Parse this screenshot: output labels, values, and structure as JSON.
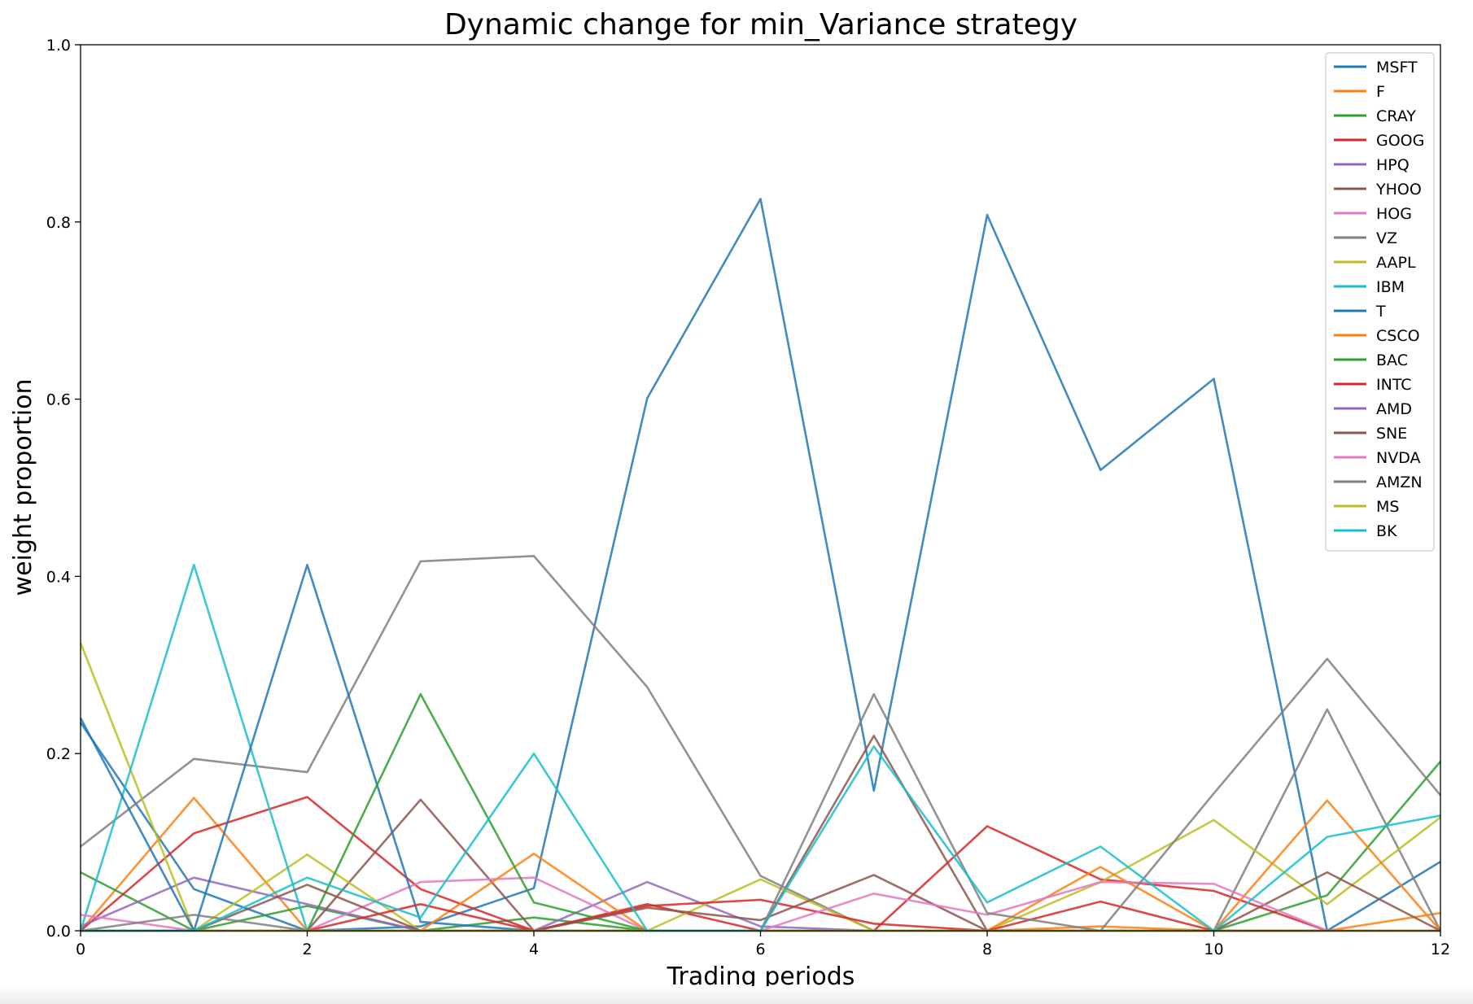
{
  "chart_data": {
    "type": "line",
    "title": "Dynamic change for min_Variance strategy",
    "xlabel": "Trading periods",
    "ylabel": "weight proportion",
    "xlim": [
      0,
      12
    ],
    "ylim": [
      0,
      1.0
    ],
    "xticks": [
      0,
      2,
      4,
      6,
      8,
      10,
      12
    ],
    "yticks": [
      "0.0",
      "0.2",
      "0.4",
      "0.6",
      "0.8",
      "1.0"
    ],
    "grid": false,
    "legend_position": "top-right",
    "x": [
      0,
      1,
      2,
      3,
      4,
      5,
      6,
      7,
      8,
      9,
      10,
      11,
      12
    ],
    "series": [
      {
        "name": "MSFT",
        "color": "#1f77b4",
        "values": [
          0.235,
          0.047,
          0.0,
          0.005,
          0.048,
          0.601,
          0.826,
          0.158,
          0.808,
          0.52,
          0.623,
          0.0,
          0.078
        ]
      },
      {
        "name": "F",
        "color": "#ff7f0e",
        "values": [
          0.0,
          0.15,
          0.0,
          0.0,
          0.0,
          0.0,
          0.0,
          0.0,
          0.0,
          0.005,
          0.0,
          0.0,
          0.02
        ]
      },
      {
        "name": "CRAY",
        "color": "#2ca02c",
        "values": [
          0.066,
          0.0,
          0.028,
          0.0,
          0.015,
          0.0,
          0.0,
          0.0,
          0.0,
          0.0,
          0.0,
          0.04,
          0.191
        ]
      },
      {
        "name": "GOOG",
        "color": "#d62728",
        "values": [
          0.0,
          0.11,
          0.151,
          0.047,
          0.0,
          0.03,
          0.0,
          0.0,
          0.118,
          0.058,
          0.045,
          0.0,
          0.0
        ]
      },
      {
        "name": "HPQ",
        "color": "#9467bd",
        "values": [
          0.005,
          0.06,
          0.03,
          0.0,
          0.0,
          0.055,
          0.005,
          0.0,
          0.0,
          0.0,
          0.0,
          0.0,
          0.0
        ]
      },
      {
        "name": "YHOO",
        "color": "#8c564b",
        "values": [
          0.0,
          0.0,
          0.0,
          0.148,
          0.0,
          0.0,
          0.0,
          0.22,
          0.0,
          0.0,
          0.0,
          0.0,
          0.0
        ]
      },
      {
        "name": "HOG",
        "color": "#e377c2",
        "values": [
          0.0,
          0.0,
          0.0,
          0.055,
          0.06,
          0.0,
          0.0,
          0.0,
          0.0,
          0.0,
          0.0,
          0.0,
          0.0
        ]
      },
      {
        "name": "VZ",
        "color": "#7f7f7f",
        "values": [
          0.095,
          0.194,
          0.179,
          0.417,
          0.423,
          0.275,
          0.062,
          0.0,
          0.0,
          0.0,
          0.0,
          0.25,
          0.0
        ]
      },
      {
        "name": "AAPL",
        "color": "#bcbd22",
        "values": [
          0.325,
          0.0,
          0.086,
          0.0,
          0.0,
          0.0,
          0.058,
          0.0,
          0.0,
          0.055,
          0.125,
          0.03,
          0.128
        ]
      },
      {
        "name": "IBM",
        "color": "#17becf",
        "values": [
          0.0,
          0.413,
          0.0,
          0.0,
          0.0,
          0.0,
          0.0,
          0.0,
          0.0,
          0.0,
          0.0,
          0.0,
          0.0
        ]
      },
      {
        "name": "T",
        "color": "#1f77b4",
        "values": [
          0.24,
          0.0,
          0.413,
          0.01,
          0.0,
          0.0,
          0.0,
          0.0,
          0.0,
          0.0,
          0.0,
          0.0,
          0.0
        ]
      },
      {
        "name": "CSCO",
        "color": "#ff7f0e",
        "values": [
          0.0,
          0.0,
          0.0,
          0.0,
          0.087,
          0.0,
          0.0,
          0.0,
          0.0,
          0.072,
          0.0,
          0.147,
          0.0
        ]
      },
      {
        "name": "BAC",
        "color": "#2ca02c",
        "values": [
          0.0,
          0.0,
          0.0,
          0.267,
          0.032,
          0.0,
          0.0,
          0.0,
          0.0,
          0.0,
          0.0,
          0.0,
          0.0
        ]
      },
      {
        "name": "INTC",
        "color": "#d62728",
        "values": [
          0.0,
          0.0,
          0.0,
          0.03,
          0.0,
          0.028,
          0.035,
          0.008,
          0.0,
          0.033,
          0.0,
          0.0,
          0.0
        ]
      },
      {
        "name": "AMD",
        "color": "#9467bd",
        "values": [
          0.0,
          0.0,
          0.0,
          0.0,
          0.0,
          0.0,
          0.0,
          0.0,
          0.0,
          0.0,
          0.0,
          0.0,
          0.0
        ]
      },
      {
        "name": "SNE",
        "color": "#8c564b",
        "values": [
          0.0,
          0.0,
          0.052,
          0.0,
          0.0,
          0.026,
          0.012,
          0.063,
          0.0,
          0.0,
          0.0,
          0.066,
          0.0
        ]
      },
      {
        "name": "NVDA",
        "color": "#e377c2",
        "values": [
          0.018,
          0.0,
          0.0,
          0.0,
          0.0,
          0.0,
          0.0,
          0.042,
          0.018,
          0.055,
          0.053,
          0.0,
          0.0
        ]
      },
      {
        "name": "AMZN",
        "color": "#7f7f7f",
        "values": [
          0.0,
          0.018,
          0.0,
          0.0,
          0.0,
          0.0,
          0.0,
          0.267,
          0.02,
          0.0,
          0.155,
          0.307,
          0.153
        ]
      },
      {
        "name": "MS",
        "color": "#bcbd22",
        "values": [
          0.0,
          0.0,
          0.0,
          0.0,
          0.0,
          0.0,
          0.0,
          0.0,
          0.0,
          0.0,
          0.0,
          0.0,
          0.0
        ]
      },
      {
        "name": "BK",
        "color": "#17becf",
        "values": [
          0.0,
          0.0,
          0.06,
          0.015,
          0.2,
          0.0,
          0.0,
          0.208,
          0.032,
          0.095,
          0.0,
          0.106,
          0.13
        ]
      }
    ]
  }
}
